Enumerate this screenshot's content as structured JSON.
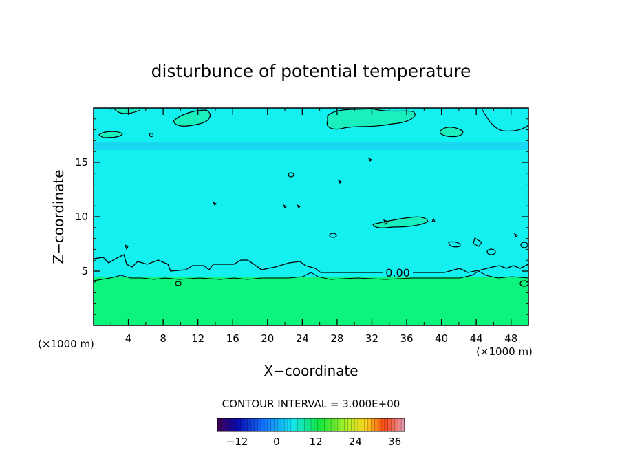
{
  "chart_data": {
    "type": "heatmap",
    "title": "disturbunce of potential temperature",
    "xlabel": "X−coordinate",
    "ylabel": "Z−coordinate",
    "x_unit": "(×1000 m)",
    "z_unit": "(×1000 m)",
    "xlim": [
      0,
      50
    ],
    "ylim": [
      0,
      20
    ],
    "x_ticks": [
      4,
      8,
      12,
      16,
      20,
      24,
      28,
      32,
      36,
      40,
      44,
      48
    ],
    "x_tick_labels": [
      "4",
      "8",
      "12",
      "16",
      "20",
      "24",
      "28",
      "32",
      "36",
      "40",
      "44",
      "48"
    ],
    "y_ticks": [
      5,
      10,
      15
    ],
    "y_tick_labels": [
      "5",
      "10",
      "15"
    ],
    "contour_label": "0.00",
    "contour_interval_text": "CONTOUR INTERVAL = 3.000E+00",
    "colorbar": {
      "range": [
        -18,
        39
      ],
      "ticks": [
        -12,
        0,
        12,
        24,
        36
      ],
      "tick_labels": [
        "−12",
        "0",
        "12",
        "24",
        "36"
      ]
    },
    "fields": {
      "upper_layer_color": "#14f0f0",
      "lower_layer_color": "#0cf47c",
      "band_color": "#19d9f2",
      "upper_patch_color": "#19f0bd"
    },
    "zero_contour_z": 4.9,
    "layer_boundary_z": 4.3,
    "stable_band_z": [
      16.0,
      16.6
    ]
  }
}
